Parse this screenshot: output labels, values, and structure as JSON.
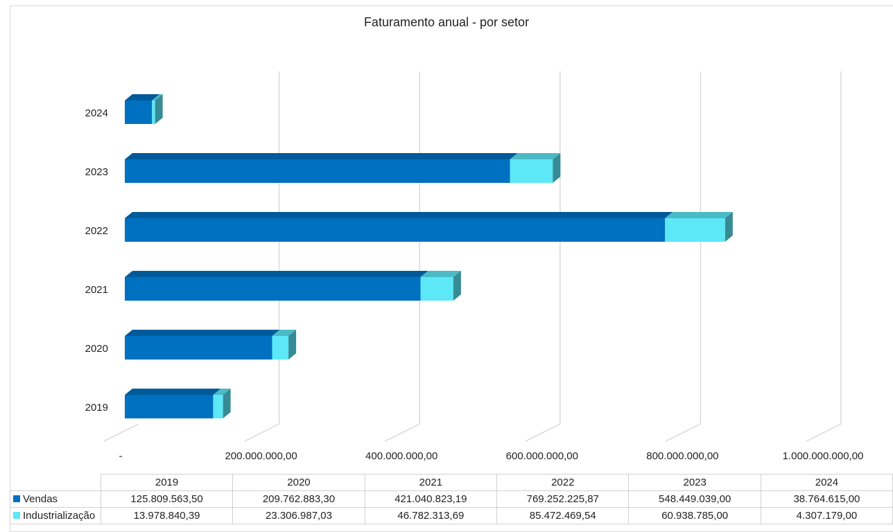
{
  "chart_data": {
    "type": "bar",
    "orientation": "horizontal",
    "stacked": true,
    "style": "3d",
    "title": "Faturamento anual - por setor",
    "categories": [
      "2019",
      "2020",
      "2021",
      "2022",
      "2023",
      "2024"
    ],
    "series": [
      {
        "name": "Vendas",
        "color": "#0070c0",
        "values": [
          125809563.5,
          209762883.3,
          421040823.19,
          769252225.87,
          548449039.0,
          38764615.0
        ],
        "labels": [
          "125.809.563,50",
          "209.762.883,30",
          "421.040.823,19",
          "769.252.225,87",
          "548.449.039,00",
          "38.764.615,00"
        ]
      },
      {
        "name": "Industrialização",
        "color": "#5ce8f7",
        "values": [
          13978840.39,
          23306987.03,
          46782313.69,
          85472469.54,
          60938785.0,
          4307179.0
        ],
        "labels": [
          "13.978.840,39",
          "23.306.987,03",
          "46.782.313,69",
          "85.472.469,54",
          "60.938.785,00",
          "4.307.179,00"
        ]
      }
    ],
    "xlim": [
      0,
      1000000000
    ],
    "x_ticks": [
      0,
      200000000,
      400000000,
      600000000,
      800000000,
      1000000000
    ],
    "x_tick_labels": [
      "-",
      "200.000.000,00",
      "400.000.000,00",
      "600.000.000,00",
      "800.000.000,00",
      "1.000.000.000,00"
    ],
    "grid": true,
    "legend": "data-table"
  }
}
